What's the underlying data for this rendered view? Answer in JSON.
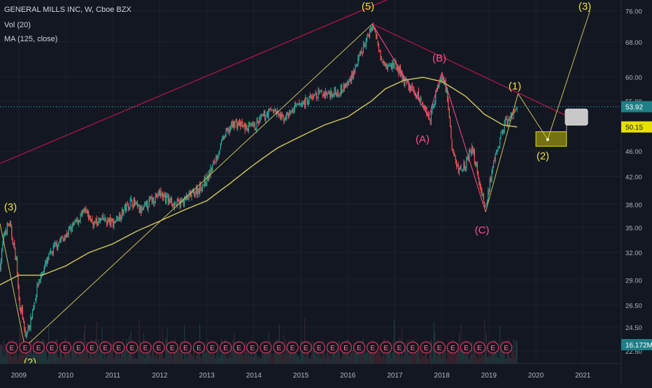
{
  "header": {
    "symbol_line": "GENERAL MILLS INC, W, Cboe BZX",
    "vol_indicator": "Vol (20)",
    "ma_indicator": "MA (125, close)"
  },
  "colors": {
    "background": "#131722",
    "candle_up": "#26a69a",
    "candle_down": "#ef5350",
    "ma_line": "#c8c05a",
    "wave_labels_impulse": "#f0e040",
    "wave_labels_corrective": "#ff4d8a",
    "trendline": "#b8164a",
    "price_line": "#26c6da",
    "earnings_marker": "#e0345c",
    "projection_box": "#e8e000"
  },
  "axes": {
    "x_labels": [
      "2009",
      "2010",
      "2011",
      "2012",
      "2013",
      "2014",
      "2015",
      "2016",
      "2017",
      "2018",
      "2019",
      "2020",
      "2021"
    ],
    "y_labels": [
      "76.00",
      "68.00",
      "60.00",
      "55.00",
      "46.00",
      "42.00",
      "38.00",
      "35.00",
      "32.00",
      "29.00",
      "26.50",
      "24.50",
      "22.50"
    ],
    "scale": "log"
  },
  "price_badges": {
    "last_price": "53.92",
    "ma_value": "50.15",
    "volume": "16.172M"
  },
  "wave_labels": {
    "w3_left": "(3)",
    "w5": "(5)",
    "wA": "(A)",
    "wB": "(B)",
    "wC": "(C)",
    "w1": "(1)",
    "w2": "(2)",
    "w3_right": "(3)",
    "w2_clipped": "(2)"
  },
  "callout": {
    "value": "47.94"
  },
  "earnings": {
    "letter": "E",
    "count": 38
  },
  "chart_data": {
    "type": "candlestick",
    "title": "GENERAL MILLS INC, W, Cboe BZX",
    "y_scale": "log",
    "ylim": [
      21.5,
      79
    ],
    "xlim": [
      2008.6,
      2021.8
    ],
    "close_anchors": [
      [
        2008.6,
        30.5
      ],
      [
        2008.7,
        34.5
      ],
      [
        2008.8,
        35.5
      ],
      [
        2008.95,
        31.0
      ],
      [
        2009.0,
        27.0
      ],
      [
        2009.08,
        25.5
      ],
      [
        2009.13,
        23.5
      ],
      [
        2009.25,
        25.0
      ],
      [
        2009.4,
        28.5
      ],
      [
        2009.6,
        31.0
      ],
      [
        2009.8,
        33.0
      ],
      [
        2010.0,
        34.0
      ],
      [
        2010.2,
        35.5
      ],
      [
        2010.4,
        37.0
      ],
      [
        2010.6,
        35.5
      ],
      [
        2010.8,
        36.0
      ],
      [
        2011.0,
        35.5
      ],
      [
        2011.2,
        37.0
      ],
      [
        2011.4,
        38.5
      ],
      [
        2011.6,
        37.0
      ],
      [
        2011.8,
        38.5
      ],
      [
        2012.0,
        39.5
      ],
      [
        2012.2,
        38.5
      ],
      [
        2012.4,
        38.0
      ],
      [
        2012.6,
        39.0
      ],
      [
        2012.8,
        40.0
      ],
      [
        2013.0,
        41.5
      ],
      [
        2013.2,
        45.0
      ],
      [
        2013.4,
        49.0
      ],
      [
        2013.6,
        51.0
      ],
      [
        2013.8,
        50.0
      ],
      [
        2014.0,
        50.0
      ],
      [
        2014.2,
        52.0
      ],
      [
        2014.4,
        53.5
      ],
      [
        2014.6,
        51.5
      ],
      [
        2014.8,
        53.0
      ],
      [
        2015.0,
        54.5
      ],
      [
        2015.2,
        55.5
      ],
      [
        2015.4,
        56.5
      ],
      [
        2015.6,
        56.5
      ],
      [
        2015.8,
        57.0
      ],
      [
        2016.0,
        58.5
      ],
      [
        2016.2,
        63.0
      ],
      [
        2016.4,
        68.5
      ],
      [
        2016.52,
        72.5
      ],
      [
        2016.7,
        65.0
      ],
      [
        2016.85,
        62.0
      ],
      [
        2017.0,
        63.0
      ],
      [
        2017.2,
        59.0
      ],
      [
        2017.4,
        57.0
      ],
      [
        2017.6,
        54.5
      ],
      [
        2017.75,
        51.5
      ],
      [
        2017.88,
        57.0
      ],
      [
        2018.0,
        60.5
      ],
      [
        2018.1,
        57.0
      ],
      [
        2018.22,
        46.0
      ],
      [
        2018.35,
        43.0
      ],
      [
        2018.5,
        44.0
      ],
      [
        2018.65,
        46.5
      ],
      [
        2018.8,
        41.0
      ],
      [
        2018.93,
        37.5
      ],
      [
        2019.05,
        42.0
      ],
      [
        2019.2,
        47.0
      ],
      [
        2019.35,
        51.0
      ],
      [
        2019.5,
        52.0
      ],
      [
        2019.62,
        54.5
      ]
    ],
    "ma_anchors": [
      [
        2008.6,
        28.5
      ],
      [
        2009.0,
        29.5
      ],
      [
        2009.5,
        29.5
      ],
      [
        2010.0,
        30.5
      ],
      [
        2010.5,
        32.0
      ],
      [
        2011.0,
        33.0
      ],
      [
        2011.5,
        34.5
      ],
      [
        2012.0,
        35.8
      ],
      [
        2012.5,
        37.2
      ],
      [
        2013.0,
        38.5
      ],
      [
        2013.5,
        41.0
      ],
      [
        2014.0,
        43.8
      ],
      [
        2014.5,
        46.5
      ],
      [
        2015.0,
        48.5
      ],
      [
        2015.5,
        50.5
      ],
      [
        2016.0,
        52.0
      ],
      [
        2016.5,
        55.0
      ],
      [
        2016.8,
        57.5
      ],
      [
        2017.2,
        59.3
      ],
      [
        2017.6,
        59.9
      ],
      [
        2018.0,
        59.0
      ],
      [
        2018.5,
        56.0
      ],
      [
        2018.9,
        52.5
      ],
      [
        2019.3,
        50.5
      ],
      [
        2019.6,
        50.15
      ]
    ],
    "elliott_impulse_path": [
      [
        2008.6,
        35.5
      ],
      [
        2009.13,
        22.8
      ],
      [
        2016.52,
        72.5
      ],
      [
        2017.72,
        52.0
      ],
      [
        2018.0,
        61.0
      ],
      [
        2018.93,
        37.0
      ],
      [
        2019.62,
        56.5
      ],
      [
        2020.25,
        47.94
      ],
      [
        2021.15,
        76.0
      ]
    ],
    "trendlines": [
      {
        "points": [
          [
            2008.6,
            44.0
          ],
          [
            2017.0,
            80.0
          ]
        ]
      },
      {
        "points": [
          [
            2016.52,
            72.5
          ],
          [
            2020.7,
            52.0
          ]
        ]
      }
    ],
    "projection_box": {
      "x": [
        2020.0,
        2020.65
      ],
      "y": [
        46.8,
        49.3
      ]
    },
    "last_price": 53.92,
    "ma_value": 50.15
  }
}
